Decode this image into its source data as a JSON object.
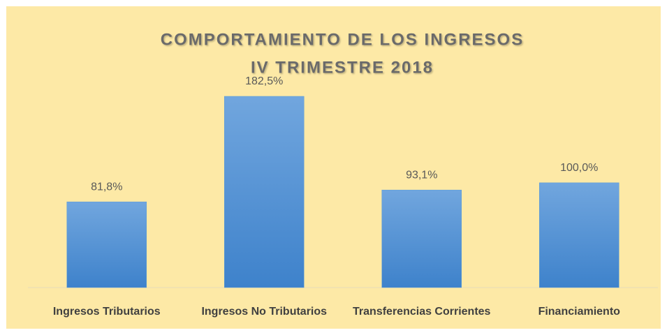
{
  "chart_data": {
    "type": "bar",
    "title": "COMPORTAMIENTO DE LOS INGRESOS",
    "subtitle": "IV TRIMESTRE 2018",
    "categories": [
      "Ingresos Tributarios",
      "Ingresos No Tributarios",
      "Transferencias Corrientes",
      "Financiamiento"
    ],
    "values": [
      81.8,
      182.5,
      93.1,
      100.0
    ],
    "value_labels": [
      "81,8%",
      "182,5%",
      "93,1%",
      "100,0%"
    ],
    "color": "#5b9bd5"
  }
}
